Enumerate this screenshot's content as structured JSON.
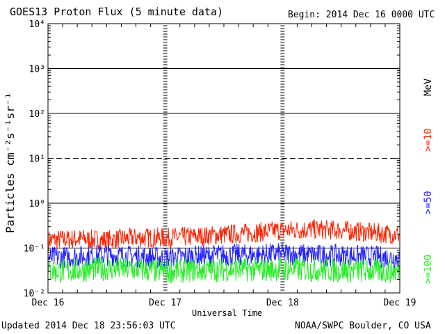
{
  "header": {
    "title": "GOES13 Proton Flux (5 minute data)",
    "begin": "Begin: 2014 Dec 16 0000 UTC"
  },
  "footer": {
    "updated": "Updated 2014 Dec 18 23:56:03 UTC",
    "credit": "NOAA/SWPC Boulder, CO USA"
  },
  "legend": {
    "unit": "MeV",
    "items": [
      {
        "label": ">=10",
        "color": "#ff2200"
      },
      {
        "label": ">=50",
        "color": "#2222ff"
      },
      {
        "label": ">=100",
        "color": "#22ee22"
      }
    ]
  },
  "chart_data": {
    "type": "line",
    "title": "GOES13 Proton Flux (5 minute data)",
    "xlabel": "Universal Time",
    "ylabel": "Particles cm⁻²s⁻¹sr⁻¹",
    "yscale": "log",
    "ylim": [
      0.01,
      10000
    ],
    "ytick_labels": [
      "10⁻²",
      "10⁻¹",
      "10⁰",
      "10¹",
      "10²",
      "10³",
      "10⁴"
    ],
    "xlim": [
      "2014-12-16",
      "2014-12-19"
    ],
    "xtick_labels": [
      "Dec 16",
      "Dec 17",
      "Dec 18",
      "Dec 19"
    ],
    "grid": true,
    "series": [
      {
        "name": ">=10",
        "color": "#ff2200",
        "x": [
          "2014-12-16 00:00",
          "2014-12-16 06:00",
          "2014-12-16 12:00",
          "2014-12-16 18:00",
          "2014-12-17 00:00",
          "2014-12-17 06:00",
          "2014-12-17 12:00",
          "2014-12-17 18:00",
          "2014-12-18 00:00",
          "2014-12-18 06:00",
          "2014-12-18 12:00",
          "2014-12-18 18:00",
          "2014-12-19 00:00"
        ],
        "y": [
          0.15,
          0.16,
          0.15,
          0.17,
          0.17,
          0.18,
          0.2,
          0.22,
          0.25,
          0.26,
          0.25,
          0.22,
          0.2
        ]
      },
      {
        "name": ">=50",
        "color": "#2222ff",
        "x": [
          "2014-12-16 00:00",
          "2014-12-16 06:00",
          "2014-12-16 12:00",
          "2014-12-16 18:00",
          "2014-12-17 00:00",
          "2014-12-17 06:00",
          "2014-12-17 12:00",
          "2014-12-17 18:00",
          "2014-12-18 00:00",
          "2014-12-18 06:00",
          "2014-12-18 12:00",
          "2014-12-18 18:00",
          "2014-12-19 00:00"
        ],
        "y": [
          0.06,
          0.065,
          0.07,
          0.065,
          0.06,
          0.065,
          0.07,
          0.07,
          0.075,
          0.07,
          0.068,
          0.065,
          0.06
        ]
      },
      {
        "name": ">=100",
        "color": "#22ee22",
        "x": [
          "2014-12-16 00:00",
          "2014-12-16 06:00",
          "2014-12-16 12:00",
          "2014-12-16 18:00",
          "2014-12-17 00:00",
          "2014-12-17 06:00",
          "2014-12-17 12:00",
          "2014-12-17 18:00",
          "2014-12-18 00:00",
          "2014-12-18 06:00",
          "2014-12-18 12:00",
          "2014-12-18 18:00",
          "2014-12-19 00:00"
        ],
        "y": [
          0.03,
          0.032,
          0.035,
          0.033,
          0.03,
          0.032,
          0.033,
          0.033,
          0.034,
          0.033,
          0.032,
          0.031,
          0.03
        ]
      }
    ]
  }
}
